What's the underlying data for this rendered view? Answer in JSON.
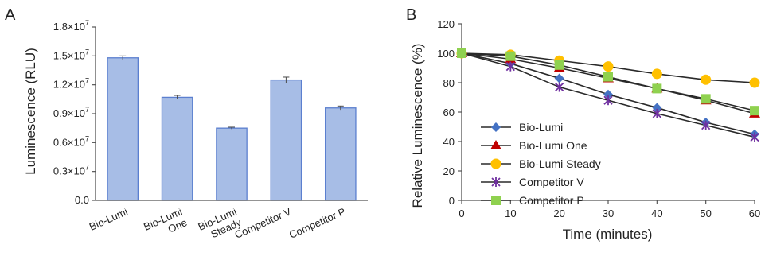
{
  "chart_data": [
    {
      "panel_label": "A",
      "type": "bar",
      "ylabel": "Luminescence (RLU)",
      "xlabel": "",
      "categories": [
        [
          "Bio-Lumi"
        ],
        [
          "Bio-Lumi",
          "One"
        ],
        [
          "Bio-Lumi",
          "Steady"
        ],
        [
          "Competitor V"
        ],
        [
          "Competitor P"
        ]
      ],
      "values": [
        14800000,
        10700000,
        7500000,
        12500000,
        9600000
      ],
      "errors": [
        200000,
        200000,
        100000,
        300000,
        200000
      ],
      "ylim": [
        0,
        18000000
      ],
      "yticks": [
        0,
        3000000,
        6000000,
        9000000,
        12000000,
        15000000,
        18000000
      ],
      "ytick_labels": [
        {
          "mantissa": "0.0",
          "power": ""
        },
        {
          "mantissa": "0.3×10",
          "power": "7"
        },
        {
          "mantissa": "0.6×10",
          "power": "7"
        },
        {
          "mantissa": "0.9×10",
          "power": "7"
        },
        {
          "mantissa": "1.2×10",
          "power": "7"
        },
        {
          "mantissa": "1.5×10",
          "power": "7"
        },
        {
          "mantissa": "1.8×10",
          "power": "7"
        }
      ],
      "bar_color": "#a7bde6",
      "bar_edge_color": "#5b7fcf",
      "grid": false
    },
    {
      "panel_label": "B",
      "type": "line",
      "xlabel": "Time (minutes)",
      "ylabel": "Relative Luminescence (%)",
      "x": [
        0,
        10,
        20,
        30,
        40,
        50,
        60
      ],
      "xlim": [
        0,
        60
      ],
      "ylim": [
        0,
        120
      ],
      "xticks": [
        0,
        10,
        20,
        30,
        40,
        50,
        60
      ],
      "yticks": [
        0,
        20,
        40,
        60,
        80,
        100,
        120
      ],
      "grid": false,
      "legend_position": "bottom-left",
      "series": [
        {
          "name": "Bio-Lumi",
          "values": [
            100,
            93,
            83,
            72,
            63,
            53,
            45
          ],
          "color": "#4472c4",
          "marker": "diamond"
        },
        {
          "name": "Bio-Lumi One",
          "values": [
            100,
            96,
            90,
            83,
            76,
            68,
            59
          ],
          "color": "#c00000",
          "marker": "triangle"
        },
        {
          "name": "Bio-Lumi Steady",
          "values": [
            100,
            99,
            95,
            91,
            86,
            82,
            80
          ],
          "color": "#ffc000",
          "marker": "circle"
        },
        {
          "name": "Competitor V",
          "values": [
            100,
            91,
            77,
            68,
            59,
            51,
            43
          ],
          "color": "#7030a0",
          "marker": "star"
        },
        {
          "name": "Competitor P",
          "values": [
            100,
            98,
            92,
            84,
            76,
            69,
            61
          ],
          "color": "#8fd14f",
          "marker": "square"
        }
      ],
      "line_color": "#2a2a2a"
    }
  ]
}
